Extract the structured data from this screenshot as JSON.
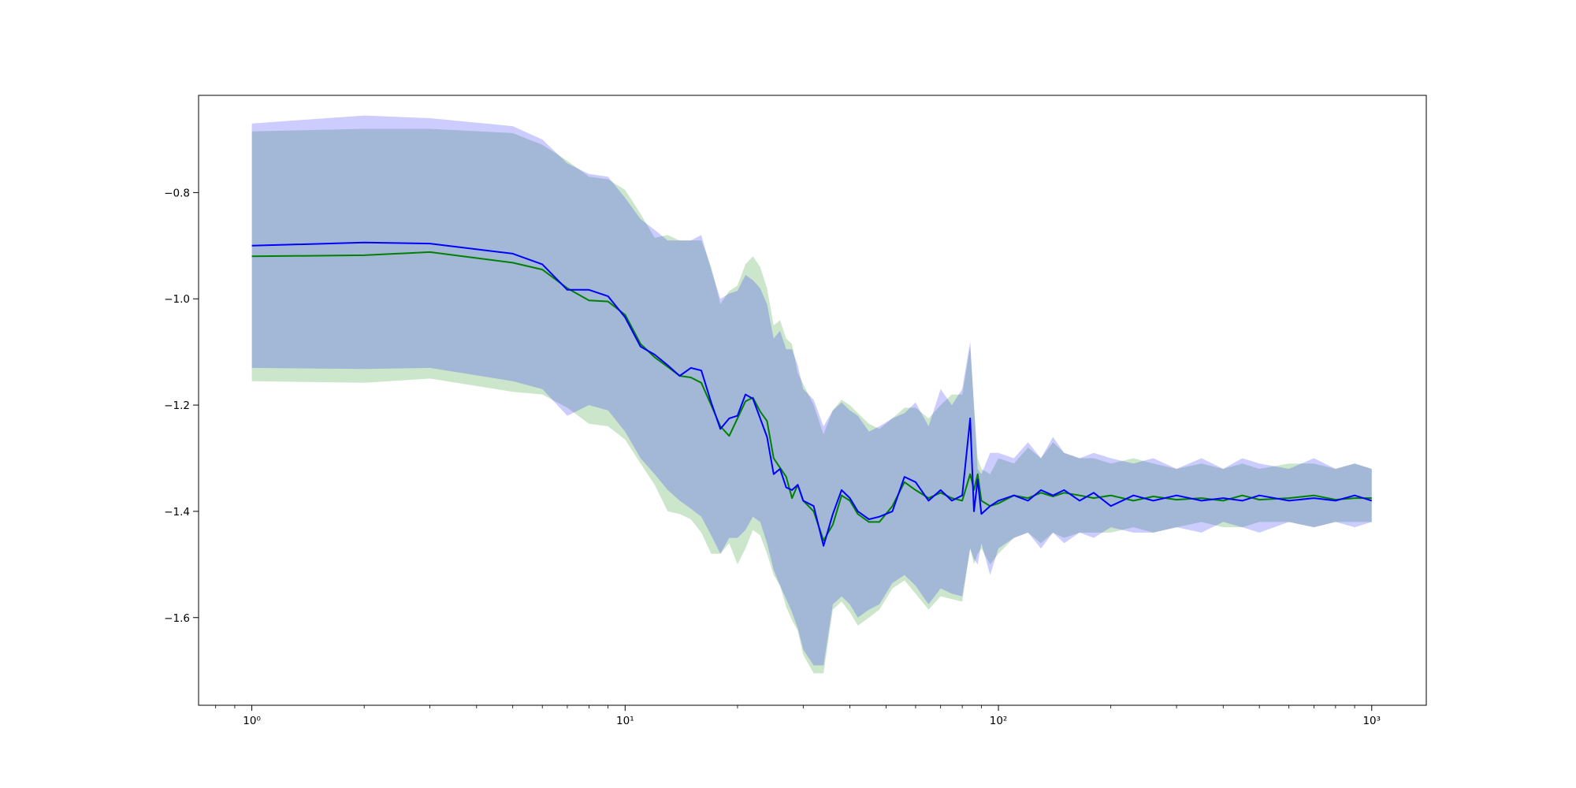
{
  "chart_data": {
    "type": "line",
    "title": "",
    "xlabel": "",
    "ylabel": "",
    "xscale": "log",
    "xlim": [
      0.72,
      1400
    ],
    "ylim": [
      -1.765,
      -0.617
    ],
    "grid": false,
    "legend": "none",
    "x_ticks": [
      {
        "value": 1,
        "label": "10⁰"
      },
      {
        "value": 10,
        "label": "10¹"
      },
      {
        "value": 100,
        "label": "10²"
      },
      {
        "value": 1000,
        "label": "10³"
      }
    ],
    "y_ticks": [
      {
        "value": -0.8,
        "label": "−0.8"
      },
      {
        "value": -1.0,
        "label": "−1.0"
      },
      {
        "value": -1.2,
        "label": "−1.2"
      },
      {
        "value": -1.4,
        "label": "−1.4"
      },
      {
        "value": -1.6,
        "label": "−1.6"
      }
    ],
    "x": [
      1,
      2,
      3,
      5,
      6,
      7,
      8,
      9,
      10,
      11,
      12,
      13,
      14,
      15,
      16,
      17,
      18,
      19,
      20,
      21,
      22,
      23,
      24,
      25,
      26,
      27,
      28,
      29,
      30,
      32,
      34,
      36,
      38,
      40,
      42,
      45,
      48,
      52,
      56,
      60,
      65,
      70,
      75,
      80,
      84,
      86,
      88,
      90,
      95,
      100,
      110,
      120,
      130,
      140,
      150,
      165,
      180,
      200,
      230,
      260,
      300,
      350,
      400,
      450,
      500,
      600,
      700,
      800,
      900,
      1000
    ],
    "series": [
      {
        "color": "#008000",
        "band_color": "#008000",
        "values": [
          -0.92,
          -0.918,
          -0.912,
          -0.932,
          -0.945,
          -0.98,
          -1.003,
          -1.005,
          -1.03,
          -1.085,
          -1.11,
          -1.128,
          -1.145,
          -1.148,
          -1.158,
          -1.2,
          -1.24,
          -1.258,
          -1.225,
          -1.193,
          -1.186,
          -1.212,
          -1.23,
          -1.3,
          -1.318,
          -1.335,
          -1.375,
          -1.35,
          -1.38,
          -1.4,
          -1.455,
          -1.425,
          -1.37,
          -1.38,
          -1.405,
          -1.42,
          -1.42,
          -1.39,
          -1.345,
          -1.36,
          -1.375,
          -1.365,
          -1.375,
          -1.38,
          -1.33,
          -1.36,
          -1.33,
          -1.38,
          -1.39,
          -1.385,
          -1.37,
          -1.375,
          -1.365,
          -1.372,
          -1.365,
          -1.37,
          -1.375,
          -1.37,
          -1.38,
          -1.372,
          -1.378,
          -1.375,
          -1.38,
          -1.37,
          -1.378,
          -1.375,
          -1.37,
          -1.378,
          -1.375,
          -1.375
        ],
        "upper": [
          -0.685,
          -0.68,
          -0.68,
          -0.688,
          -0.71,
          -0.74,
          -0.77,
          -0.775,
          -0.795,
          -0.84,
          -0.885,
          -0.88,
          -0.89,
          -0.89,
          -0.89,
          -0.94,
          -1.01,
          -0.985,
          -0.975,
          -0.935,
          -0.92,
          -0.94,
          -0.98,
          -1.05,
          -1.04,
          -1.075,
          -1.085,
          -1.14,
          -1.16,
          -1.2,
          -1.255,
          -1.21,
          -1.19,
          -1.2,
          -1.215,
          -1.235,
          -1.245,
          -1.225,
          -1.205,
          -1.205,
          -1.225,
          -1.2,
          -1.18,
          -1.18,
          -1.09,
          -1.2,
          -1.3,
          -1.32,
          -1.33,
          -1.3,
          -1.31,
          -1.28,
          -1.3,
          -1.27,
          -1.29,
          -1.3,
          -1.3,
          -1.31,
          -1.3,
          -1.31,
          -1.32,
          -1.31,
          -1.32,
          -1.31,
          -1.32,
          -1.31,
          -1.31,
          -1.32,
          -1.31,
          -1.32
        ],
        "lower": [
          -1.155,
          -1.158,
          -1.15,
          -1.175,
          -1.18,
          -1.205,
          -1.235,
          -1.24,
          -1.265,
          -1.31,
          -1.35,
          -1.4,
          -1.405,
          -1.415,
          -1.44,
          -1.48,
          -1.48,
          -1.46,
          -1.5,
          -1.47,
          -1.435,
          -1.445,
          -1.48,
          -1.52,
          -1.54,
          -1.58,
          -1.605,
          -1.625,
          -1.67,
          -1.705,
          -1.705,
          -1.585,
          -1.57,
          -1.59,
          -1.615,
          -1.6,
          -1.585,
          -1.545,
          -1.53,
          -1.555,
          -1.585,
          -1.56,
          -1.565,
          -1.57,
          -1.47,
          -1.5,
          -1.48,
          -1.47,
          -1.5,
          -1.48,
          -1.45,
          -1.44,
          -1.46,
          -1.44,
          -1.45,
          -1.44,
          -1.44,
          -1.44,
          -1.43,
          -1.44,
          -1.43,
          -1.42,
          -1.43,
          -1.43,
          -1.42,
          -1.42,
          -1.43,
          -1.42,
          -1.42,
          -1.42
        ]
      },
      {
        "color": "#0000ff",
        "band_color": "#0000ff",
        "values": [
          -0.9,
          -0.894,
          -0.896,
          -0.915,
          -0.935,
          -0.983,
          -0.983,
          -0.995,
          -1.035,
          -1.09,
          -1.105,
          -1.125,
          -1.145,
          -1.13,
          -1.135,
          -1.195,
          -1.245,
          -1.225,
          -1.22,
          -1.18,
          -1.188,
          -1.225,
          -1.26,
          -1.33,
          -1.32,
          -1.355,
          -1.36,
          -1.35,
          -1.38,
          -1.39,
          -1.465,
          -1.405,
          -1.36,
          -1.375,
          -1.4,
          -1.415,
          -1.41,
          -1.4,
          -1.335,
          -1.345,
          -1.38,
          -1.36,
          -1.38,
          -1.37,
          -1.225,
          -1.4,
          -1.34,
          -1.405,
          -1.39,
          -1.38,
          -1.37,
          -1.38,
          -1.36,
          -1.37,
          -1.36,
          -1.38,
          -1.365,
          -1.39,
          -1.37,
          -1.38,
          -1.37,
          -1.38,
          -1.375,
          -1.38,
          -1.37,
          -1.38,
          -1.375,
          -1.38,
          -1.37,
          -1.38
        ],
        "upper": [
          -0.67,
          -0.655,
          -0.66,
          -0.675,
          -0.7,
          -0.745,
          -0.765,
          -0.77,
          -0.81,
          -0.85,
          -0.87,
          -0.89,
          -0.89,
          -0.89,
          -0.88,
          -0.945,
          -1.0,
          -0.99,
          -0.985,
          -0.955,
          -0.965,
          -0.98,
          -1.01,
          -1.075,
          -1.06,
          -1.095,
          -1.095,
          -1.125,
          -1.17,
          -1.19,
          -1.24,
          -1.21,
          -1.195,
          -1.21,
          -1.22,
          -1.25,
          -1.24,
          -1.225,
          -1.215,
          -1.195,
          -1.24,
          -1.17,
          -1.2,
          -1.17,
          -1.08,
          -1.2,
          -1.32,
          -1.33,
          -1.29,
          -1.29,
          -1.3,
          -1.27,
          -1.3,
          -1.26,
          -1.29,
          -1.3,
          -1.29,
          -1.3,
          -1.31,
          -1.3,
          -1.32,
          -1.3,
          -1.32,
          -1.3,
          -1.31,
          -1.32,
          -1.3,
          -1.32,
          -1.31,
          -1.32
        ],
        "lower": [
          -1.13,
          -1.132,
          -1.13,
          -1.155,
          -1.17,
          -1.22,
          -1.2,
          -1.21,
          -1.25,
          -1.3,
          -1.33,
          -1.36,
          -1.38,
          -1.395,
          -1.41,
          -1.445,
          -1.48,
          -1.45,
          -1.45,
          -1.435,
          -1.41,
          -1.42,
          -1.46,
          -1.51,
          -1.54,
          -1.565,
          -1.59,
          -1.62,
          -1.66,
          -1.69,
          -1.69,
          -1.575,
          -1.56,
          -1.575,
          -1.6,
          -1.585,
          -1.575,
          -1.535,
          -1.52,
          -1.54,
          -1.575,
          -1.545,
          -1.555,
          -1.56,
          -1.47,
          -1.49,
          -1.5,
          -1.46,
          -1.52,
          -1.47,
          -1.45,
          -1.44,
          -1.47,
          -1.44,
          -1.46,
          -1.44,
          -1.45,
          -1.43,
          -1.44,
          -1.44,
          -1.43,
          -1.44,
          -1.42,
          -1.43,
          -1.44,
          -1.42,
          -1.43,
          -1.42,
          -1.43,
          -1.42
        ]
      }
    ]
  }
}
